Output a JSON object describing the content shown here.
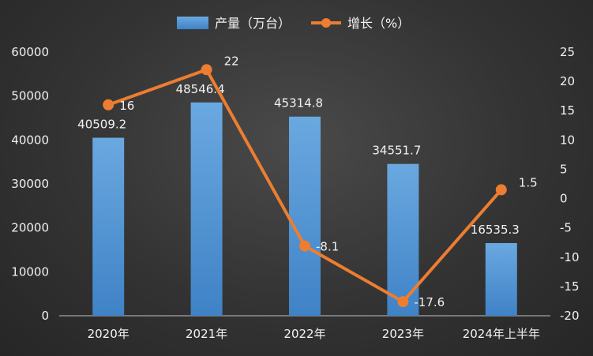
{
  "chart_data": {
    "type": "bar",
    "categories": [
      "2020年",
      "2021年",
      "2022年",
      "2023年",
      "2024年上半年"
    ],
    "series": [
      {
        "name": "产量（万台）",
        "type": "bar",
        "axis": "left",
        "values": [
          40509.2,
          48546.4,
          45314.8,
          34551.7,
          16535.3
        ],
        "labels": [
          "40509.2",
          "48546.4",
          "45314.8",
          "34551.7",
          "16535.3"
        ],
        "color": "#5b9bd5"
      },
      {
        "name": "增长（%）",
        "type": "line",
        "axis": "right",
        "values": [
          16,
          22,
          -8.1,
          -17.6,
          1.5
        ],
        "labels": [
          "16",
          "22",
          "-8.1",
          "-17.6",
          "1.5"
        ],
        "color": "#ed7d31"
      }
    ],
    "y_left": {
      "lim": [
        0,
        60000
      ],
      "ticks": [
        0,
        10000,
        20000,
        30000,
        40000,
        50000,
        60000
      ]
    },
    "y_right": {
      "lim": [
        -20,
        25
      ],
      "ticks": [
        -20,
        -15,
        -10,
        -5,
        0,
        5,
        10,
        15,
        20,
        25
      ]
    },
    "legend": "top-center",
    "grid": false
  }
}
